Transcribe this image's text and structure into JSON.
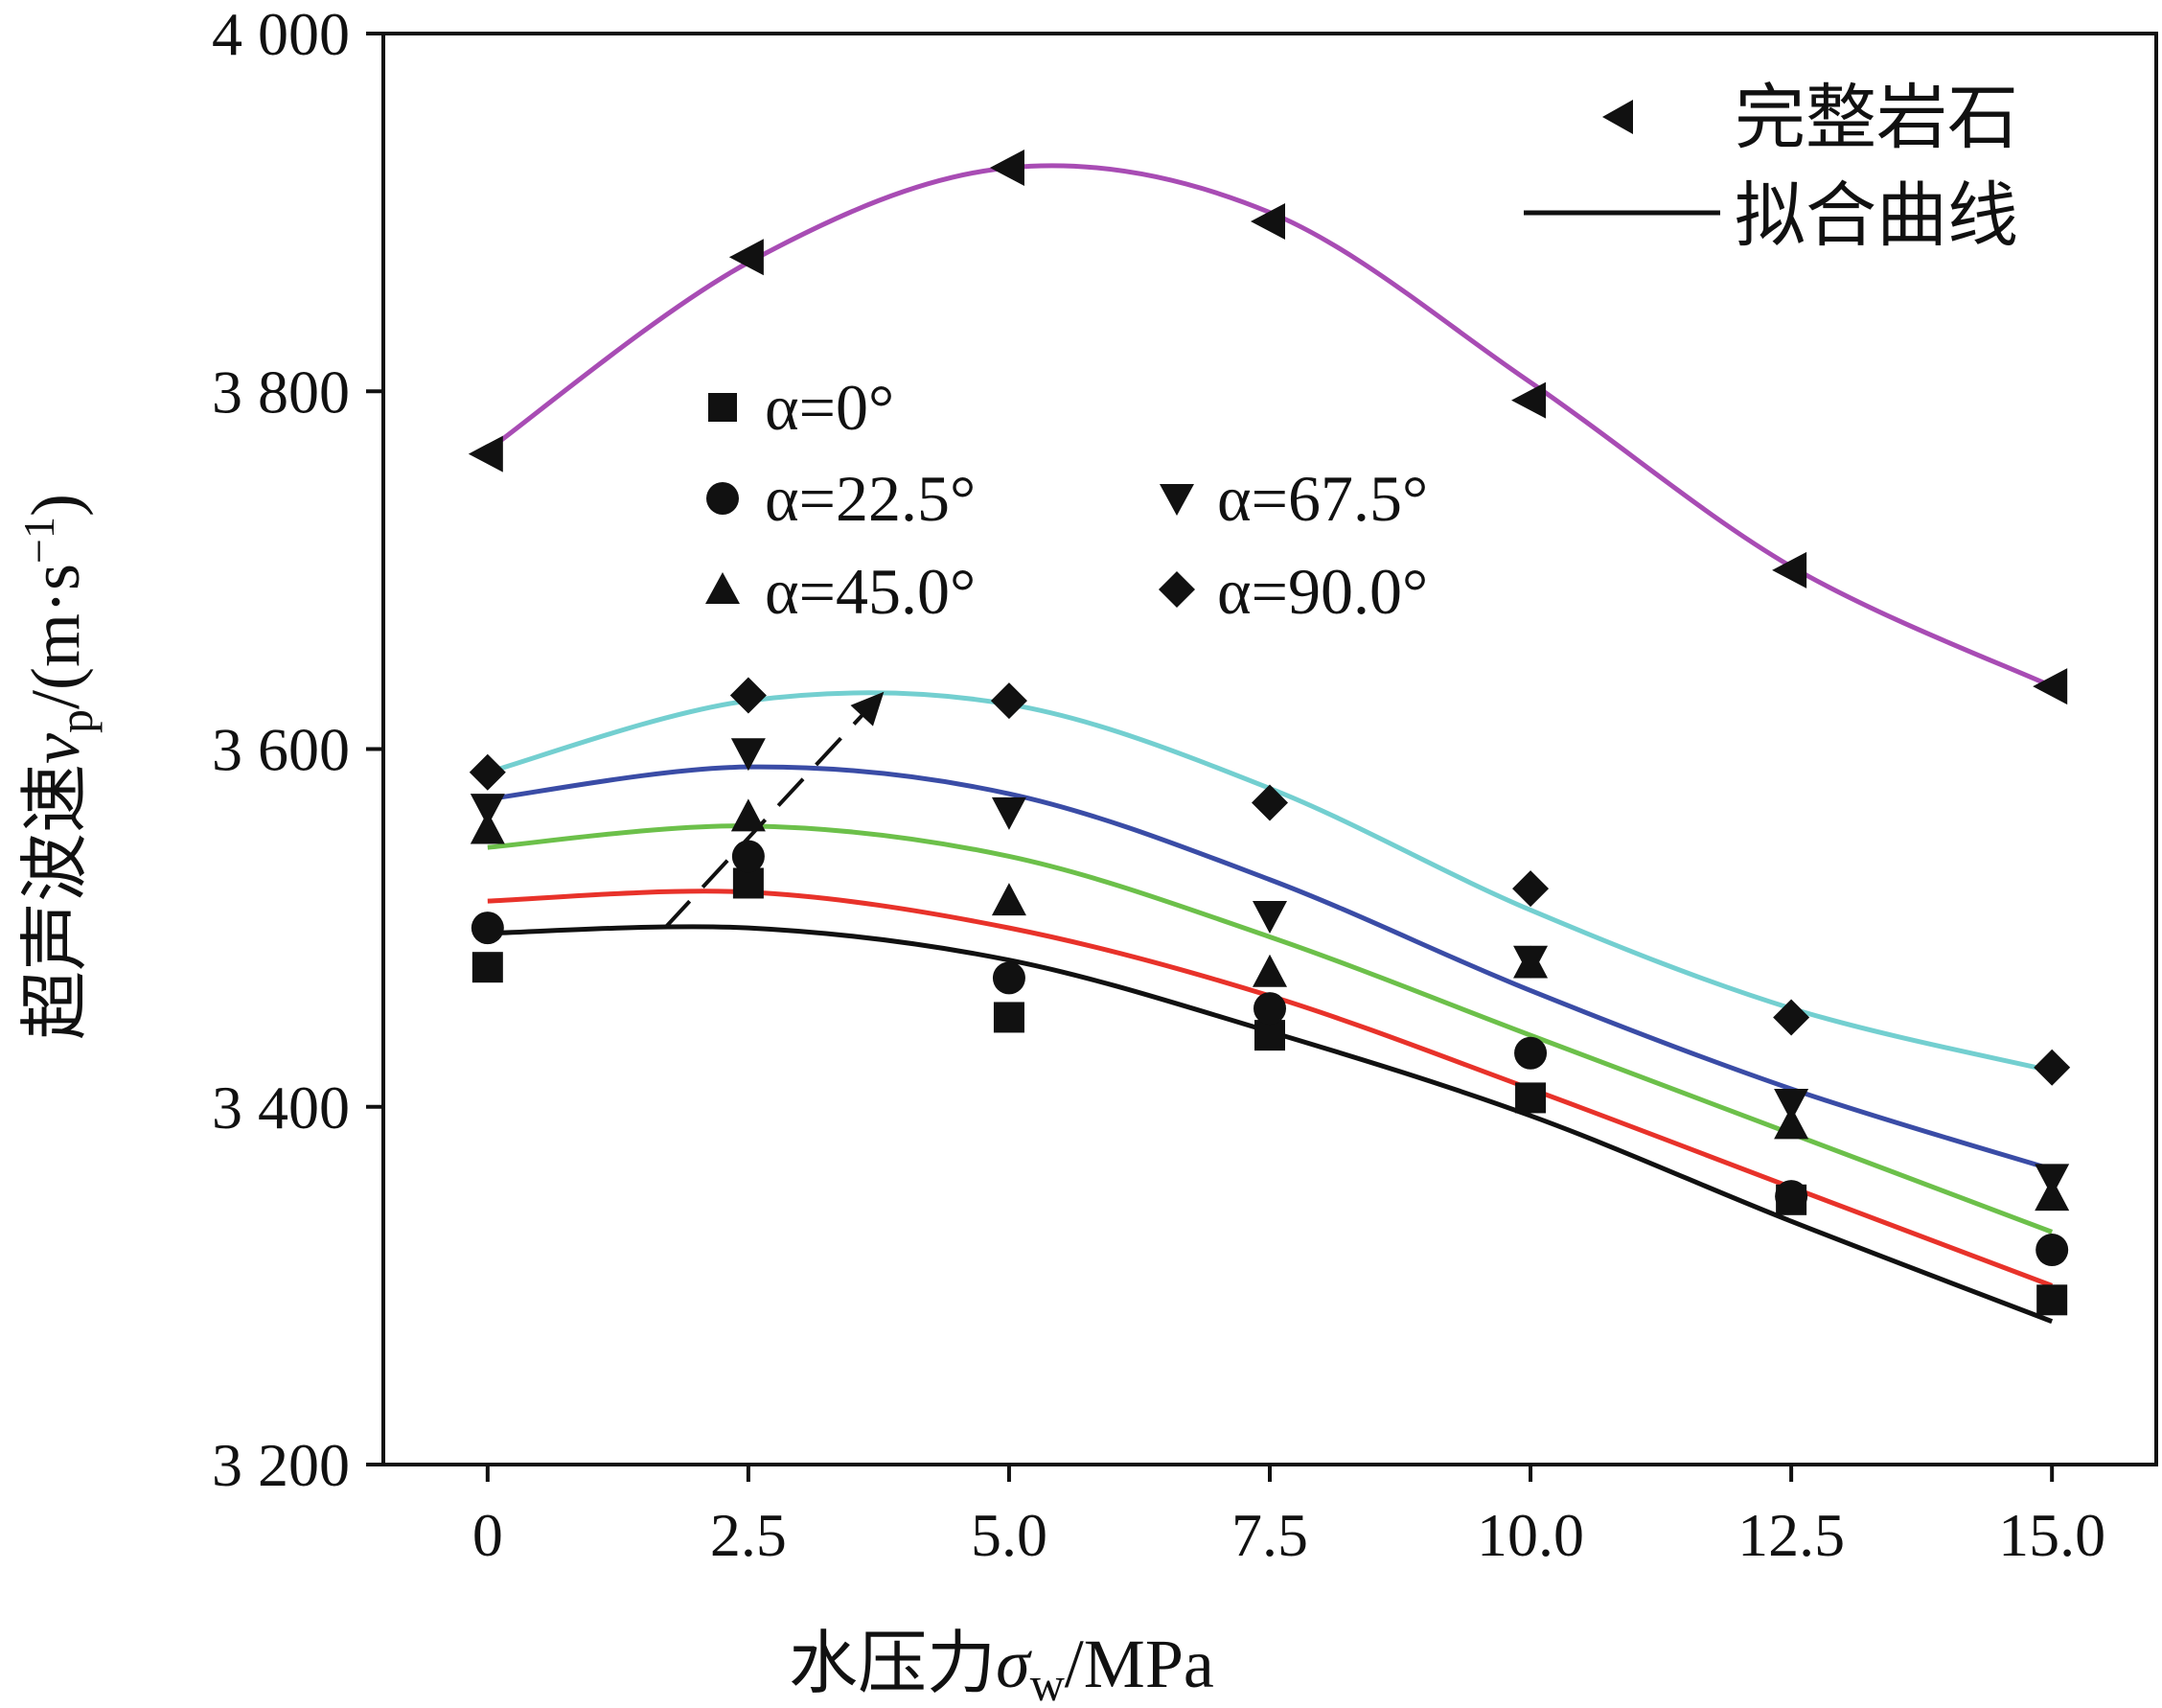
{
  "chart_data": {
    "type": "scatter",
    "xlabel_main": "水压力",
    "xlabel_symbol": "σ",
    "xlabel_sub": "w",
    "xlabel_unit": "/MPa",
    "ylabel_main": "超声波速",
    "ylabel_symbol": "v",
    "ylabel_sub": "p",
    "ylabel_unit": "/(m·s",
    "ylabel_exp": "−1",
    "ylabel_close": ")",
    "xlim": [
      -1,
      16
    ],
    "ylim": [
      3200,
      4000
    ],
    "x_ticks": [
      0,
      2.5,
      5.0,
      7.5,
      10.0,
      12.5,
      15.0
    ],
    "x_tick_labels": [
      "0",
      "2.5",
      "5.0",
      "7.5",
      "10.0",
      "12.5",
      "15.0"
    ],
    "y_ticks": [
      3200,
      3400,
      3600,
      3800,
      4000
    ],
    "y_tick_labels": [
      "3 200",
      "3 400",
      "3 600",
      "3 800",
      "4 000"
    ],
    "x": [
      0,
      2.5,
      5.0,
      7.5,
      10.0,
      12.5,
      15.0
    ],
    "series": [
      {
        "name": "α=0°",
        "marker": "square",
        "color": "#111111",
        "values": [
          3478,
          3525,
          3450,
          3440,
          3405,
          3348,
          3292
        ],
        "fit": [
          3497,
          3500,
          3482,
          3442,
          3395,
          3336,
          3280
        ],
        "fit_color": "#111111"
      },
      {
        "name": "α=22.5°",
        "marker": "circle",
        "color": "#111111",
        "values": [
          3500,
          3540,
          3472,
          3455,
          3430,
          3350,
          3320
        ],
        "fit": [
          3515,
          3520,
          3500,
          3462,
          3410,
          3355,
          3300
        ],
        "fit_color": "#e8322a"
      },
      {
        "name": "α=45.0°",
        "marker": "triangle-up",
        "color": "#111111",
        "values": [
          3555,
          3562,
          3515,
          3475,
          3480,
          3390,
          3350
        ],
        "fit": [
          3545,
          3557,
          3540,
          3495,
          3440,
          3385,
          3330
        ],
        "fit_color": "#6cc04a"
      },
      {
        "name": "α=67.5°",
        "marker": "triangle-down",
        "color": "#111111",
        "values": [
          3567,
          3598,
          3565,
          3507,
          3482,
          3402,
          3360
        ],
        "fit": [
          3572,
          3590,
          3575,
          3527,
          3465,
          3410,
          3365
        ],
        "fit_color": "#3a4ca6"
      },
      {
        "name": "α=90.0°",
        "marker": "diamond",
        "color": "#111111",
        "values": [
          3587,
          3630,
          3627,
          3570,
          3522,
          3450,
          3422
        ],
        "fit": [
          3587,
          3627,
          3625,
          3578,
          3510,
          3455,
          3420
        ],
        "fit_color": "#73cfd0"
      },
      {
        "name": "完整岩石",
        "marker": "triangle-left",
        "color": "#111111",
        "values": [
          3765,
          3875,
          3925,
          3895,
          3795,
          3700,
          3635
        ],
        "fit": [
          3767,
          3872,
          3925,
          3900,
          3805,
          3702,
          3635
        ],
        "fit_color": "#a84cb4"
      }
    ],
    "fit_label": "拟合曲线",
    "trend_line": {
      "style": "dashed",
      "arrow": true,
      "from": [
        1.7,
        3500
      ],
      "to": [
        3.8,
        3632
      ]
    }
  }
}
